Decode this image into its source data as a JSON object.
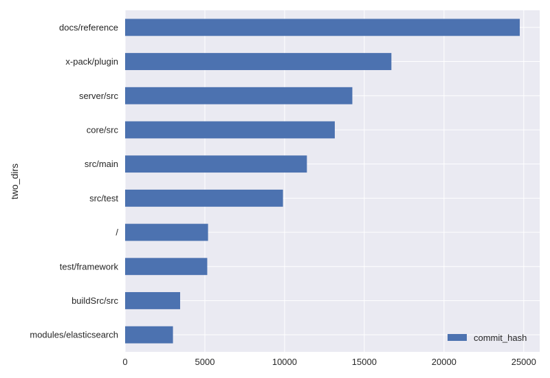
{
  "chart_data": {
    "type": "bar",
    "orientation": "horizontal",
    "title": "",
    "xlabel": "",
    "ylabel": "two_dirs",
    "categories": [
      "docs/reference",
      "x-pack/plugin",
      "server/src",
      "core/src",
      "src/main",
      "src/test",
      "/",
      "test/framework",
      "buildSrc/src",
      "modules/elasticsearch"
    ],
    "series": [
      {
        "name": "commit_hash",
        "values": [
          24750,
          16700,
          14250,
          13150,
          11400,
          9900,
          5200,
          5150,
          3450,
          3000
        ],
        "color": "#4c72b0"
      }
    ],
    "xlim": [
      0,
      26000
    ],
    "xticks": [
      0,
      5000,
      10000,
      15000,
      20000,
      25000
    ],
    "grid": true,
    "legend_position": "bottom-right",
    "colors": {
      "plot_background": "#eaeaf2",
      "grid": "#ffffff",
      "text": "#262626"
    }
  }
}
